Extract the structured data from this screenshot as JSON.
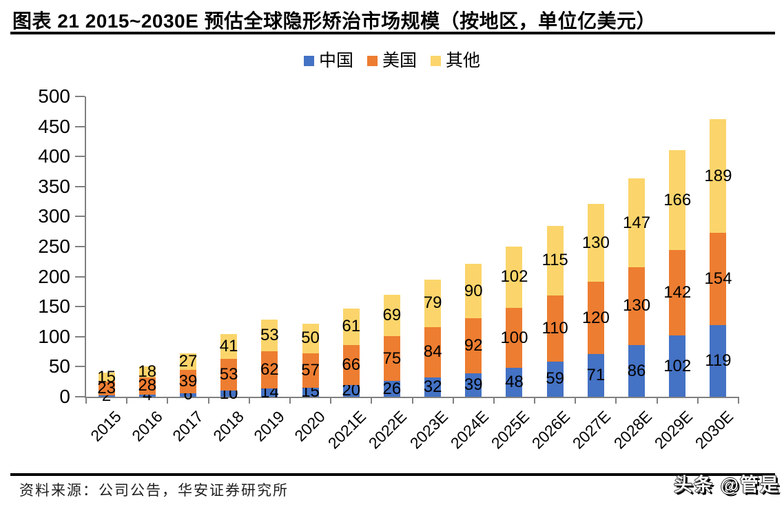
{
  "title": "图表  21 2015~2030E 预估全球隐形矫治市场规模（按地区，单位亿美元）",
  "chart_data": {
    "type": "bar",
    "stacked": true,
    "title": "2015~2030E 预估全球隐形矫治市场规模（按地区，单位亿美元）",
    "categories": [
      "2015",
      "2016",
      "2017",
      "2018",
      "2019",
      "2020",
      "2021E",
      "2022E",
      "2023E",
      "2024E",
      "2025E",
      "2026E",
      "2027E",
      "2028E",
      "2029E",
      "2030E"
    ],
    "series": [
      {
        "key": "china",
        "name": "中国",
        "color": "#4472C4",
        "values": [
          2,
          4,
          6,
          10,
          14,
          15,
          20,
          26,
          32,
          39,
          48,
          59,
          71,
          86,
          102,
          119
        ]
      },
      {
        "key": "us",
        "name": "美国",
        "color": "#ED7D31",
        "values": [
          23,
          28,
          39,
          53,
          62,
          57,
          66,
          75,
          84,
          92,
          100,
          110,
          120,
          130,
          142,
          154
        ]
      },
      {
        "key": "other",
        "name": "其他",
        "color": "#FBD56B",
        "values": [
          15,
          18,
          27,
          41,
          53,
          50,
          61,
          69,
          79,
          90,
          102,
          115,
          130,
          147,
          166,
          189
        ]
      }
    ],
    "ylim": [
      0,
      500
    ],
    "yticks": [
      0,
      50,
      100,
      150,
      200,
      250,
      300,
      350,
      400,
      450,
      500
    ],
    "grid": false,
    "legend_position": "top",
    "data_labels": true,
    "axis_color": "#808080"
  },
  "footer": {
    "source": "资料来源：公司公告，华安证券研究所",
    "watermark": "头条 @管是"
  }
}
